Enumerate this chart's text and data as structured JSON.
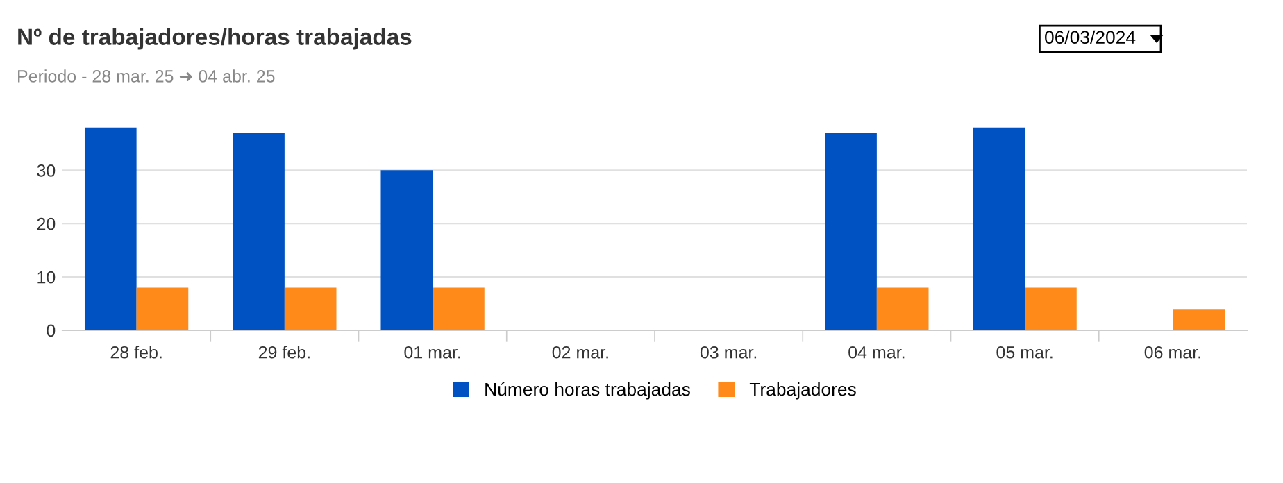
{
  "chart_data": {
    "type": "bar",
    "title": "Nº de trabajadores/horas trabajadas",
    "subtitle": "Periodo - 28 mar. 25 ➜ 04 abr. 25",
    "annotations": [
      "06/03/2024"
    ],
    "categories": [
      "28 feb.",
      "29 feb.",
      "01 mar.",
      "02 mar.",
      "03 mar.",
      "04 mar.",
      "05 mar.",
      "06 mar."
    ],
    "series": [
      {
        "name": "Número horas trabajadas",
        "color": "#0052c2",
        "values": [
          38,
          37,
          30,
          0,
          0,
          37,
          38,
          0
        ]
      },
      {
        "name": "Trabajadores",
        "color": "#ff8a1a",
        "values": [
          8,
          8,
          8,
          0,
          0,
          8,
          8,
          4
        ]
      }
    ],
    "ylim": [
      0,
      38.5
    ],
    "yticks": [
      0,
      10,
      20,
      30
    ],
    "grid": "y",
    "legend": "bottom"
  }
}
